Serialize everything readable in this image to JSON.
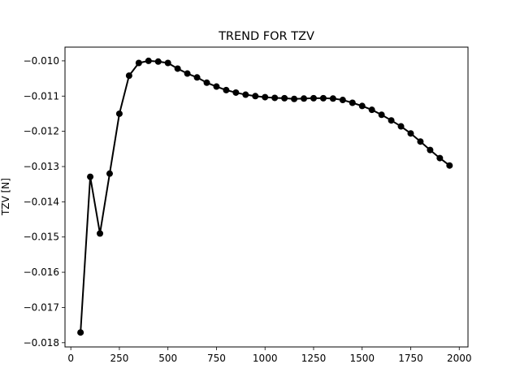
{
  "chart_data": {
    "type": "line",
    "title": "TREND FOR TZV",
    "xlabel": "",
    "ylabel": "TZV [N]",
    "xlim": [
      -30,
      2045
    ],
    "ylim": [
      -0.01812,
      -0.00961
    ],
    "xticks": [
      0,
      250,
      500,
      750,
      1000,
      1250,
      1500,
      1750,
      2000
    ],
    "xtick_labels": [
      "0",
      "250",
      "500",
      "750",
      "1000",
      "1250",
      "1500",
      "1750",
      "2000"
    ],
    "yticks": [
      -0.018,
      -0.017,
      -0.016,
      -0.015,
      -0.014,
      -0.013,
      -0.012,
      -0.011,
      -0.01
    ],
    "ytick_labels": [
      "−0.018",
      "−0.017",
      "−0.016",
      "−0.015",
      "−0.014",
      "−0.013",
      "−0.012",
      "−0.011",
      "−0.010"
    ],
    "grid": false,
    "series": [
      {
        "color": "#000000",
        "x": [
          50,
          100,
          150,
          200,
          250,
          300,
          350,
          400,
          450,
          500,
          550,
          600,
          650,
          700,
          750,
          800,
          850,
          900,
          950,
          1000,
          1050,
          1100,
          1150,
          1200,
          1250,
          1300,
          1350,
          1400,
          1450,
          1500,
          1550,
          1600,
          1650,
          1700,
          1750,
          1800,
          1850,
          1900,
          1950
        ],
        "y": [
          -0.01771,
          -0.01329,
          -0.0149,
          -0.0132,
          -0.0115,
          -0.01042,
          -0.01006,
          -0.01,
          -0.01002,
          -0.01006,
          -0.01022,
          -0.01036,
          -0.01047,
          -0.01062,
          -0.01073,
          -0.01083,
          -0.0109,
          -0.01096,
          -0.011,
          -0.01103,
          -0.01105,
          -0.01106,
          -0.01108,
          -0.01107,
          -0.01106,
          -0.01106,
          -0.01107,
          -0.01111,
          -0.01119,
          -0.01128,
          -0.01139,
          -0.01153,
          -0.01169,
          -0.01186,
          -0.01206,
          -0.01229,
          -0.01253,
          -0.01276,
          -0.01297
        ]
      }
    ]
  }
}
